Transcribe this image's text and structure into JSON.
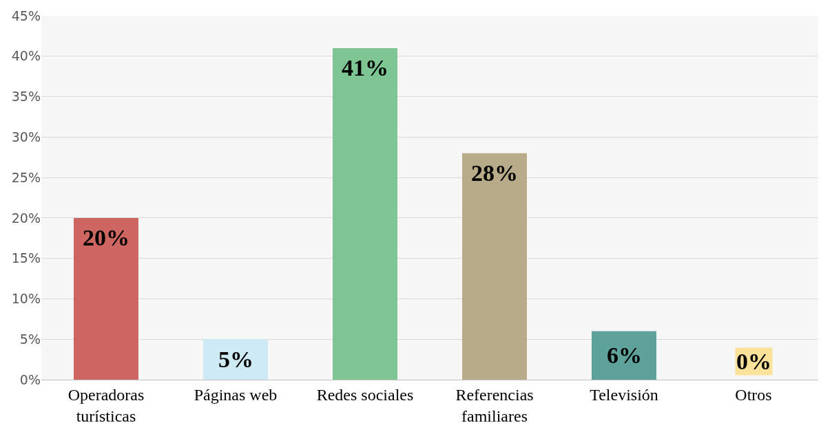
{
  "chart_data": {
    "type": "bar",
    "categories": [
      "Operadoras turísticas",
      "Páginas web",
      "Redes sociales",
      "Referencias familiares",
      "Televisión",
      "Otros"
    ],
    "values": [
      20,
      5,
      41,
      28,
      6,
      0
    ],
    "colors": [
      "#cd6560",
      "#cdeaf5",
      "#7ec594",
      "#b8ab8a",
      "#5fa29c",
      "#fbe29a"
    ],
    "ylim": [
      0,
      45
    ],
    "yticks": [
      {
        "value": 0,
        "label": "0%"
      },
      {
        "value": 5,
        "label": "5%"
      },
      {
        "value": 10,
        "label": "10%"
      },
      {
        "value": 15,
        "label": "15%"
      },
      {
        "value": 20,
        "label": "20%"
      },
      {
        "value": 25,
        "label": "25%"
      },
      {
        "value": 30,
        "label": "30%"
      },
      {
        "value": 35,
        "label": "35%"
      },
      {
        "value": 40,
        "label": "40%"
      },
      {
        "value": 45,
        "label": "45%"
      }
    ],
    "grid": "y",
    "value_labels": [
      "20%",
      "5%",
      "41%",
      "28%",
      "6%",
      "0%"
    ]
  }
}
